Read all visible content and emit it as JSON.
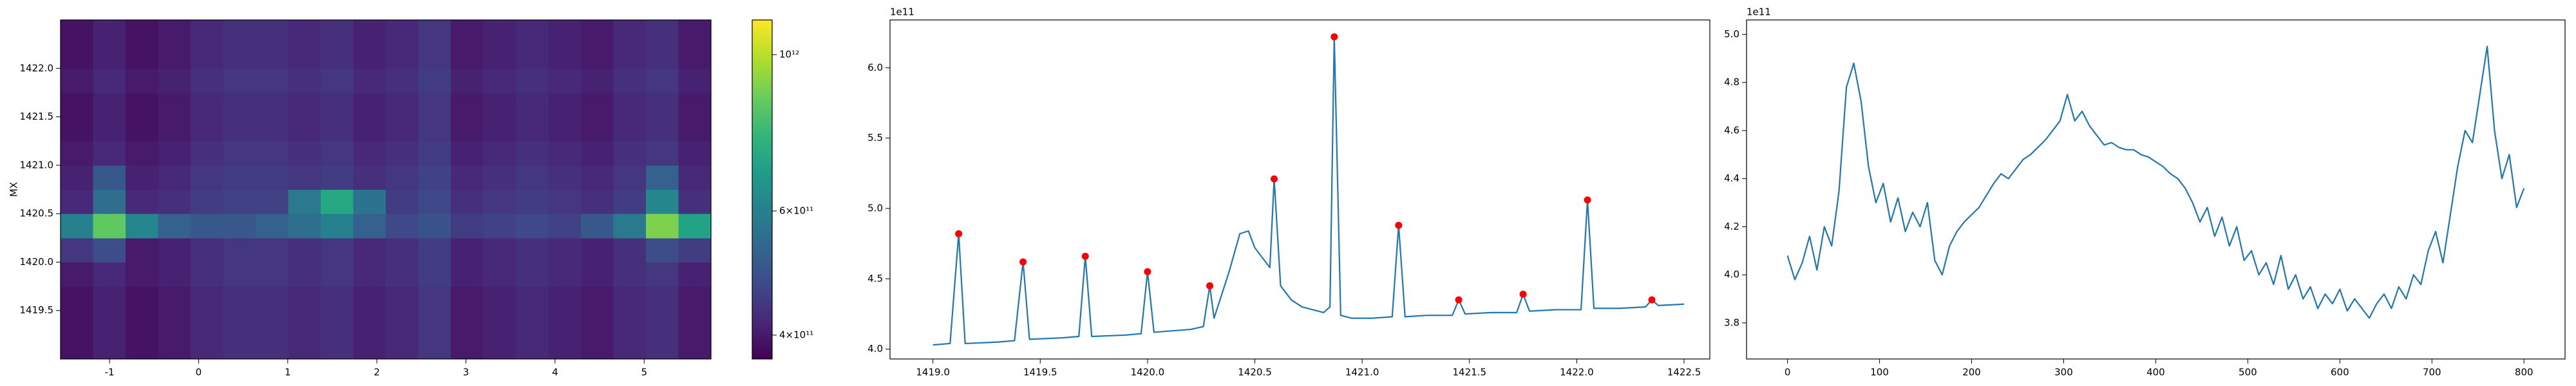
{
  "chart_data": [
    {
      "type": "heatmap",
      "ylabel": "MX",
      "x": [
        -1.55,
        -1.185,
        -0.82,
        -0.455,
        -0.09,
        0.275,
        0.64,
        1.005,
        1.37,
        1.735,
        2.1,
        2.465,
        2.83,
        3.195,
        3.56,
        3.925,
        4.29,
        4.655,
        5.02,
        5.385,
        5.75
      ],
      "y": [
        1419.0,
        1419.25,
        1419.5,
        1419.75,
        1420.0,
        1420.25,
        1420.5,
        1420.75,
        1421.0,
        1421.25,
        1421.5,
        1421.75,
        1422.0,
        1422.25,
        1422.5
      ],
      "z": [
        [
          390000000000.0,
          410000000000.0,
          390000000000.0,
          400000000000.0,
          420000000000.0,
          430000000000.0,
          430000000000.0,
          420000000000.0,
          430000000000.0,
          410000000000.0,
          420000000000.0,
          440000000000.0,
          400000000000.0,
          410000000000.0,
          420000000000.0,
          410000000000.0,
          400000000000.0,
          420000000000.0,
          430000000000.0,
          400000000000.0
        ],
        [
          390000000000.0,
          410000000000.0,
          390000000000.0,
          400000000000.0,
          420000000000.0,
          430000000000.0,
          430000000000.0,
          420000000000.0,
          430000000000.0,
          410000000000.0,
          420000000000.0,
          440000000000.0,
          400000000000.0,
          410000000000.0,
          420000000000.0,
          410000000000.0,
          400000000000.0,
          420000000000.0,
          430000000000.0,
          400000000000.0
        ],
        [
          390000000000.0,
          410000000000.0,
          390000000000.0,
          400000000000.0,
          420000000000.0,
          430000000000.0,
          430000000000.0,
          420000000000.0,
          430000000000.0,
          410000000000.0,
          420000000000.0,
          440000000000.0,
          400000000000.0,
          410000000000.0,
          420000000000.0,
          410000000000.0,
          400000000000.0,
          420000000000.0,
          430000000000.0,
          400000000000.0
        ],
        [
          400000000000.0,
          420000000000.0,
          400000000000.0,
          410000000000.0,
          430000000000.0,
          440000000000.0,
          440000000000.0,
          430000000000.0,
          440000000000.0,
          420000000000.0,
          430000000000.0,
          450000000000.0,
          410000000000.0,
          420000000000.0,
          430000000000.0,
          420000000000.0,
          410000000000.0,
          430000000000.0,
          440000000000.0,
          410000000000.0
        ],
        [
          440000000000.0,
          480000000000.0,
          400000000000.0,
          410000000000.0,
          430000000000.0,
          440000000000.0,
          440000000000.0,
          430000000000.0,
          440000000000.0,
          420000000000.0,
          430000000000.0,
          450000000000.0,
          410000000000.0,
          420000000000.0,
          430000000000.0,
          420000000000.0,
          410000000000.0,
          430000000000.0,
          480000000000.0,
          450000000000.0
        ],
        [
          600000000000.0,
          850000000000.0,
          620000000000.0,
          520000000000.0,
          500000000000.0,
          500000000000.0,
          520000000000.0,
          550000000000.0,
          600000000000.0,
          520000000000.0,
          470000000000.0,
          490000000000.0,
          450000000000.0,
          460000000000.0,
          470000000000.0,
          460000000000.0,
          500000000000.0,
          580000000000.0,
          900000000000.0,
          700000000000.0
        ],
        [
          420000000000.0,
          550000000000.0,
          420000000000.0,
          430000000000.0,
          450000000000.0,
          460000000000.0,
          460000000000.0,
          580000000000.0,
          720000000000.0,
          560000000000.0,
          450000000000.0,
          470000000000.0,
          430000000000.0,
          440000000000.0,
          450000000000.0,
          440000000000.0,
          430000000000.0,
          450000000000.0,
          620000000000.0,
          430000000000.0
        ],
        [
          410000000000.0,
          500000000000.0,
          410000000000.0,
          420000000000.0,
          440000000000.0,
          450000000000.0,
          450000000000.0,
          440000000000.0,
          450000000000.0,
          430000000000.0,
          440000000000.0,
          460000000000.0,
          420000000000.0,
          430000000000.0,
          440000000000.0,
          430000000000.0,
          420000000000.0,
          440000000000.0,
          520000000000.0,
          420000000000.0
        ],
        [
          400000000000.0,
          420000000000.0,
          400000000000.0,
          410000000000.0,
          430000000000.0,
          440000000000.0,
          440000000000.0,
          430000000000.0,
          440000000000.0,
          420000000000.0,
          430000000000.0,
          450000000000.0,
          410000000000.0,
          420000000000.0,
          430000000000.0,
          420000000000.0,
          410000000000.0,
          430000000000.0,
          440000000000.0,
          410000000000.0
        ],
        [
          390000000000.0,
          410000000000.0,
          390000000000.0,
          400000000000.0,
          420000000000.0,
          430000000000.0,
          430000000000.0,
          420000000000.0,
          430000000000.0,
          410000000000.0,
          420000000000.0,
          440000000000.0,
          400000000000.0,
          410000000000.0,
          420000000000.0,
          410000000000.0,
          400000000000.0,
          420000000000.0,
          430000000000.0,
          400000000000.0
        ],
        [
          390000000000.0,
          410000000000.0,
          390000000000.0,
          400000000000.0,
          420000000000.0,
          430000000000.0,
          430000000000.0,
          420000000000.0,
          430000000000.0,
          410000000000.0,
          420000000000.0,
          440000000000.0,
          400000000000.0,
          410000000000.0,
          420000000000.0,
          410000000000.0,
          400000000000.0,
          420000000000.0,
          430000000000.0,
          400000000000.0
        ],
        [
          400000000000.0,
          420000000000.0,
          400000000000.0,
          410000000000.0,
          430000000000.0,
          440000000000.0,
          440000000000.0,
          430000000000.0,
          440000000000.0,
          420000000000.0,
          430000000000.0,
          450000000000.0,
          410000000000.0,
          420000000000.0,
          430000000000.0,
          420000000000.0,
          410000000000.0,
          430000000000.0,
          440000000000.0,
          410000000000.0
        ],
        [
          390000000000.0,
          410000000000.0,
          390000000000.0,
          400000000000.0,
          420000000000.0,
          430000000000.0,
          430000000000.0,
          420000000000.0,
          430000000000.0,
          410000000000.0,
          420000000000.0,
          440000000000.0,
          400000000000.0,
          410000000000.0,
          420000000000.0,
          410000000000.0,
          400000000000.0,
          420000000000.0,
          430000000000.0,
          400000000000.0
        ],
        [
          390000000000.0,
          410000000000.0,
          390000000000.0,
          400000000000.0,
          420000000000.0,
          430000000000.0,
          430000000000.0,
          420000000000.0,
          430000000000.0,
          410000000000.0,
          420000000000.0,
          440000000000.0,
          400000000000.0,
          410000000000.0,
          420000000000.0,
          410000000000.0,
          400000000000.0,
          420000000000.0,
          430000000000.0,
          400000000000.0
        ]
      ],
      "xlim": [
        -1.55,
        5.75
      ],
      "ylim": [
        1419.0,
        1422.5
      ],
      "xticks": [
        -1,
        0,
        1,
        2,
        3,
        4,
        5
      ],
      "yticks": [
        1419.5,
        {
          "value": 1420,
          "label": "1420.0"
        },
        1420.5,
        {
          "value": 1421,
          "label": "1421.0"
        },
        1421.5,
        {
          "value": 1422,
          "label": "1422.0"
        }
      ],
      "colormap": "viridis",
      "color_log": true,
      "clim": [
        370000000000.0,
        1120000000000.0
      ],
      "cticks": [
        {
          "value": 1000000000000.0,
          "label": "10¹²"
        },
        {
          "value": 600000000000.0,
          "label": "6×10¹¹"
        },
        {
          "value": 400000000000.0,
          "label": "4×10¹¹"
        }
      ]
    },
    {
      "type": "line",
      "y_offset_label": "1e11",
      "series": [
        {
          "color": "#1f77b4",
          "x": [
            1419.0,
            1419.08,
            1419.12,
            1419.15,
            1419.3,
            1419.38,
            1419.42,
            1419.45,
            1419.6,
            1419.68,
            1419.71,
            1419.74,
            1419.9,
            1419.97,
            1420.0,
            1420.03,
            1420.2,
            1420.26,
            1420.29,
            1420.31,
            1420.38,
            1420.43,
            1420.47,
            1420.5,
            1420.55,
            1420.57,
            1420.59,
            1420.62,
            1420.67,
            1420.72,
            1420.77,
            1420.82,
            1420.85,
            1420.87,
            1420.9,
            1420.95,
            1421.05,
            1421.14,
            1421.17,
            1421.2,
            1421.3,
            1421.42,
            1421.45,
            1421.48,
            1421.6,
            1421.72,
            1421.75,
            1421.78,
            1421.9,
            1422.02,
            1422.05,
            1422.08,
            1422.2,
            1422.32,
            1422.35,
            1422.38,
            1422.5
          ],
          "values": [
            4.03,
            4.04,
            4.82,
            4.04,
            4.05,
            4.06,
            4.62,
            4.07,
            4.08,
            4.09,
            4.66,
            4.09,
            4.1,
            4.11,
            4.55,
            4.12,
            4.14,
            4.16,
            4.45,
            4.22,
            4.55,
            4.82,
            4.84,
            4.72,
            4.62,
            4.58,
            5.21,
            4.45,
            4.35,
            4.3,
            4.28,
            4.26,
            4.3,
            6.22,
            4.24,
            4.22,
            4.22,
            4.23,
            4.88,
            4.23,
            4.24,
            4.24,
            4.35,
            4.25,
            4.26,
            4.26,
            4.39,
            4.27,
            4.28,
            4.28,
            5.06,
            4.29,
            4.29,
            4.3,
            4.35,
            4.31,
            4.32
          ]
        },
        {
          "color": "red",
          "marker": "o",
          "x": [
            1419.12,
            1419.42,
            1419.71,
            1420.0,
            1420.29,
            1420.59,
            1420.87,
            1421.17,
            1421.45,
            1421.75,
            1422.05,
            1422.35
          ],
          "values": [
            4.82,
            4.62,
            4.66,
            4.55,
            4.45,
            5.21,
            6.22,
            4.88,
            4.35,
            4.39,
            5.06,
            4.35
          ]
        }
      ],
      "xlim": [
        1418.8,
        1422.62
      ],
      "ylim": [
        3.93,
        6.34
      ],
      "xticks": [
        {
          "value": 1419,
          "label": "1419.0"
        },
        1419.5,
        {
          "value": 1420,
          "label": "1420.0"
        },
        1420.5,
        {
          "value": 1421,
          "label": "1421.0"
        },
        1421.5,
        {
          "value": 1422,
          "label": "1422.0"
        },
        1422.5
      ],
      "yticks": [
        {
          "value": 4,
          "label": "4.0"
        },
        4.5,
        {
          "value": 5,
          "label": "5.0"
        },
        5.5,
        {
          "value": 6,
          "label": "6.0"
        }
      ]
    },
    {
      "type": "line",
      "y_offset_label": "1e11",
      "series": [
        {
          "color": "#1f77b4",
          "x": [
            0,
            8,
            16,
            24,
            32,
            40,
            48,
            56,
            64,
            72,
            80,
            88,
            96,
            104,
            112,
            120,
            128,
            136,
            144,
            152,
            160,
            168,
            176,
            184,
            192,
            200,
            208,
            216,
            224,
            232,
            240,
            248,
            256,
            264,
            272,
            280,
            288,
            296,
            304,
            312,
            320,
            328,
            336,
            344,
            352,
            360,
            368,
            376,
            384,
            392,
            400,
            408,
            416,
            424,
            432,
            440,
            448,
            456,
            464,
            472,
            480,
            488,
            496,
            504,
            512,
            520,
            528,
            536,
            544,
            552,
            560,
            568,
            576,
            584,
            592,
            600,
            608,
            616,
            624,
            632,
            640,
            648,
            656,
            664,
            672,
            680,
            688,
            696,
            704,
            712,
            720,
            728,
            736,
            744,
            752,
            760,
            768,
            776,
            784,
            792,
            800
          ],
          "values": [
            4.08,
            3.98,
            4.05,
            4.16,
            4.02,
            4.2,
            4.12,
            4.35,
            4.78,
            4.88,
            4.72,
            4.45,
            4.3,
            4.38,
            4.22,
            4.32,
            4.18,
            4.26,
            4.2,
            4.3,
            4.06,
            4.0,
            4.12,
            4.18,
            4.22,
            4.25,
            4.28,
            4.33,
            4.38,
            4.42,
            4.4,
            4.44,
            4.48,
            4.5,
            4.53,
            4.56,
            4.6,
            4.64,
            4.75,
            4.64,
            4.68,
            4.62,
            4.58,
            4.54,
            4.55,
            4.53,
            4.52,
            4.52,
            4.5,
            4.49,
            4.47,
            4.45,
            4.42,
            4.4,
            4.36,
            4.3,
            4.22,
            4.28,
            4.16,
            4.24,
            4.12,
            4.2,
            4.06,
            4.1,
            4.0,
            4.05,
            3.96,
            4.08,
            3.94,
            4.0,
            3.9,
            3.95,
            3.86,
            3.92,
            3.88,
            3.94,
            3.85,
            3.9,
            3.86,
            3.82,
            3.88,
            3.92,
            3.86,
            3.95,
            3.9,
            4.0,
            3.96,
            4.1,
            4.18,
            4.05,
            4.25,
            4.45,
            4.6,
            4.55,
            4.75,
            4.95,
            4.6,
            4.4,
            4.5,
            4.28,
            4.36
          ]
        }
      ],
      "xlim": [
        -44.5,
        844.6
      ],
      "ylim": [
        3.65,
        5.06
      ],
      "xticks": [
        0,
        100,
        200,
        300,
        400,
        500,
        600,
        700,
        800
      ],
      "yticks": [
        {
          "value": 3.8,
          "label": "3.8"
        },
        {
          "value": 4,
          "label": "4.0"
        },
        4.2,
        4.4,
        4.6,
        4.8,
        {
          "value": 5,
          "label": "5.0"
        }
      ]
    }
  ]
}
